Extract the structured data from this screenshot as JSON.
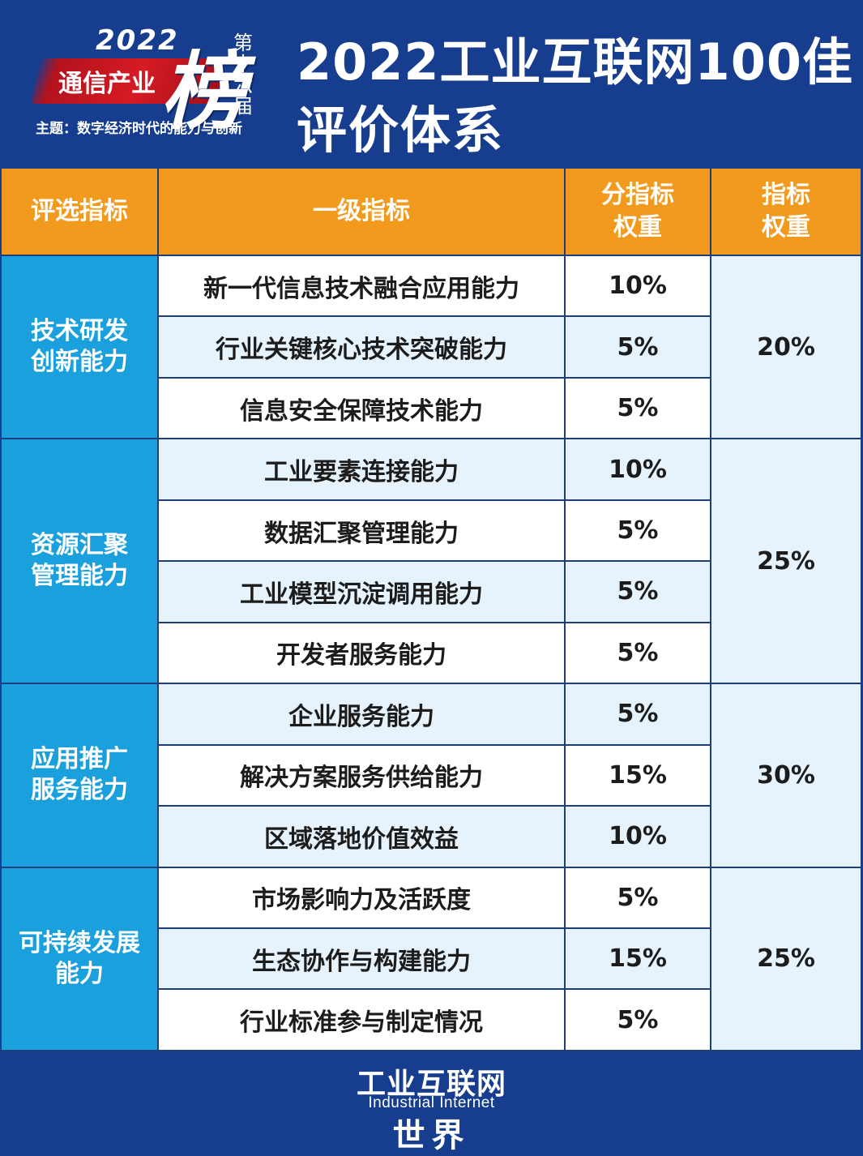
{
  "header": {
    "logo": {
      "year": "2022",
      "industry": "通信产业",
      "bang": "榜",
      "edition": "第十六届",
      "theme": "主题：数字经济时代的能力与创新"
    },
    "title_line1": "2022工业互联网100佳",
    "title_line2": "评价体系"
  },
  "table": {
    "columns": [
      "评选指标",
      "一级指标",
      "分指标权重",
      "指标权重"
    ],
    "column_display": [
      "评选指标",
      "一级指标",
      "分指标\n权重",
      "指标\n权重"
    ],
    "categories": [
      {
        "name": "技术研发创新能力",
        "display": "技术研发\n创新能力",
        "weight": "20%",
        "indicators": [
          {
            "name": "新一代信息技术融合应用能力",
            "weight": "10%"
          },
          {
            "name": "行业关键核心技术突破能力",
            "weight": "5%"
          },
          {
            "name": "信息安全保障技术能力",
            "weight": "5%"
          }
        ]
      },
      {
        "name": "资源汇聚管理能力",
        "display": "资源汇聚\n管理能力",
        "weight": "25%",
        "indicators": [
          {
            "name": "工业要素连接能力",
            "weight": "10%"
          },
          {
            "name": "数据汇聚管理能力",
            "weight": "5%"
          },
          {
            "name": "工业模型沉淀调用能力",
            "weight": "5%"
          },
          {
            "name": "开发者服务能力",
            "weight": "5%"
          }
        ]
      },
      {
        "name": "应用推广服务能力",
        "display": "应用推广\n服务能力",
        "weight": "30%",
        "indicators": [
          {
            "name": "企业服务能力",
            "weight": "5%"
          },
          {
            "name": "解决方案服务供给能力",
            "weight": "15%"
          },
          {
            "name": "区域落地价值效益",
            "weight": "10%"
          }
        ]
      },
      {
        "name": "可持续发展能力",
        "display": "可持续发展\n能力",
        "weight": "25%",
        "indicators": [
          {
            "name": "市场影响力及活跃度",
            "weight": "5%"
          },
          {
            "name": "生态协作与构建能力",
            "weight": "15%"
          },
          {
            "name": "行业标准参与制定情况",
            "weight": "5%"
          }
        ]
      }
    ]
  },
  "footer": {
    "brand_cn": "工业互联网",
    "brand_en": "Industrial Internet",
    "brand_world": "世界"
  },
  "colors": {
    "frame_blue": "#173d8e",
    "header_orange": "#f29a1e",
    "category_blue": "#1ba0de",
    "light_blue_row": "#e6f3fc",
    "logo_red": "#d61b24"
  }
}
